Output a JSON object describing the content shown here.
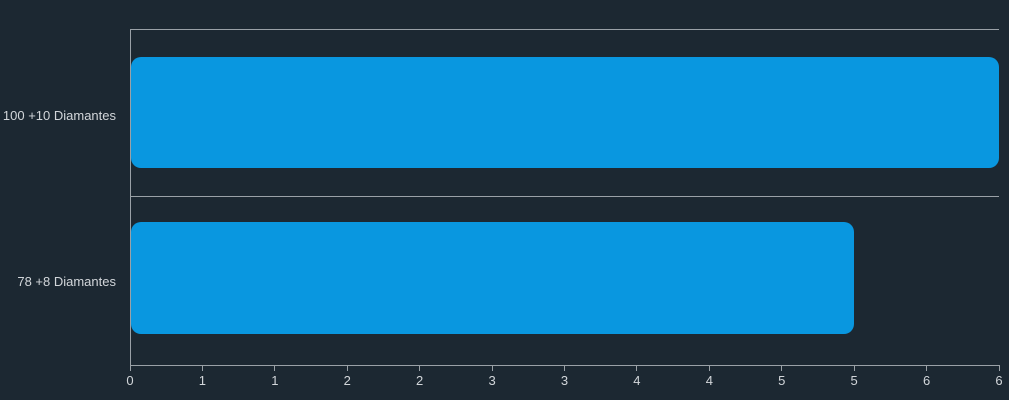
{
  "chart_data": {
    "type": "bar",
    "orientation": "horizontal",
    "title": "",
    "xlabel": "",
    "ylabel": "",
    "categories": [
      "100 +10 Diamantes",
      "78 +8 Diamantes"
    ],
    "values": [
      6,
      5
    ],
    "xlim": [
      0,
      6
    ],
    "x_tick_labels": [
      "0",
      "1",
      "1",
      "2",
      "2",
      "3",
      "3",
      "4",
      "4",
      "5",
      "5",
      "6",
      "6"
    ],
    "x_tick_step": 0.5,
    "legend": "none",
    "grid": "horizontal band separators, framed left/top/bottom",
    "bar_corner_radius_px": 10,
    "colors": {
      "background": "#1c2832",
      "bar": "#0997e0",
      "grid": "#9aa1a7",
      "text": "#d2d6da"
    }
  }
}
